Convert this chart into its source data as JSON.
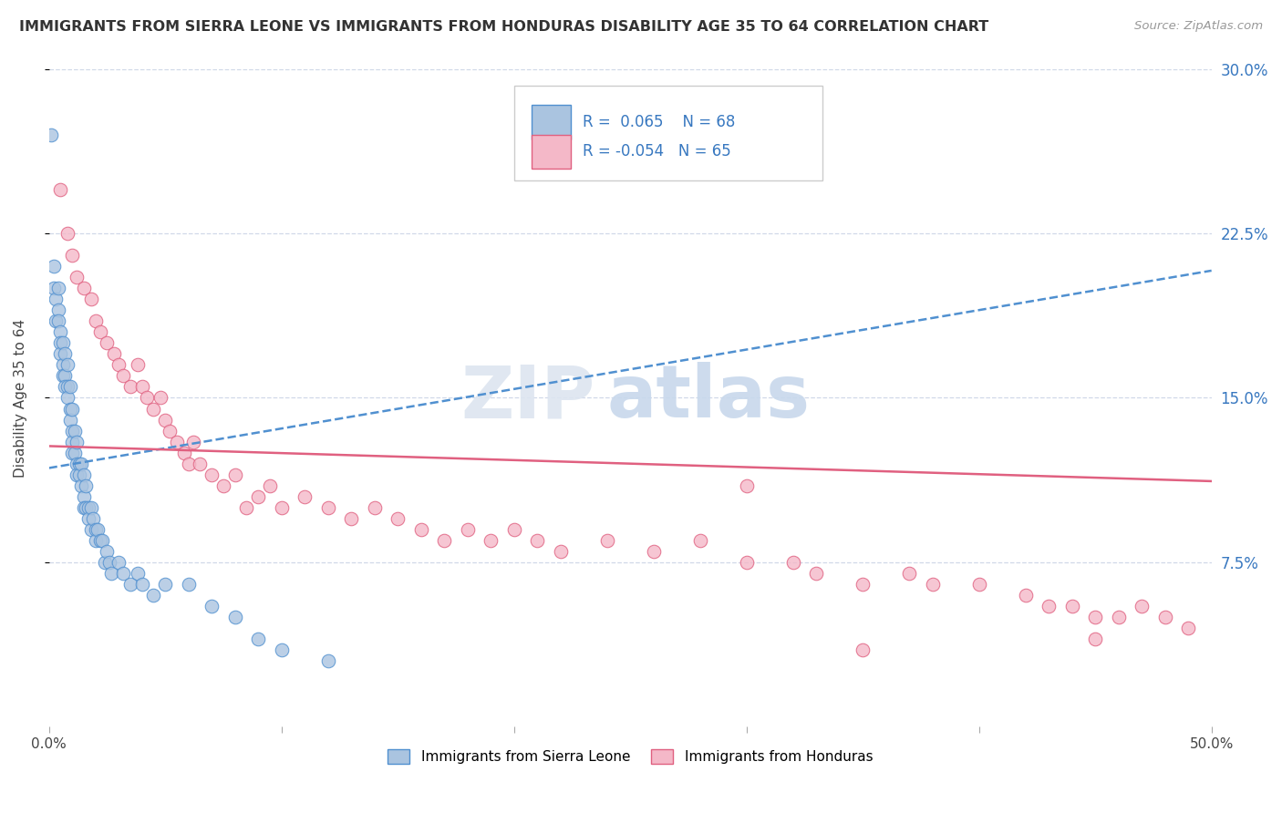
{
  "title": "IMMIGRANTS FROM SIERRA LEONE VS IMMIGRANTS FROM HONDURAS DISABILITY AGE 35 TO 64 CORRELATION CHART",
  "source": "Source: ZipAtlas.com",
  "ylabel": "Disability Age 35 to 64",
  "xlim": [
    0.0,
    0.5
  ],
  "ylim": [
    0.0,
    0.3
  ],
  "yticks": [
    0.075,
    0.15,
    0.225,
    0.3
  ],
  "ytick_labels": [
    "7.5%",
    "15.0%",
    "22.5%",
    "30.0%"
  ],
  "r_sierra": 0.065,
  "n_sierra": 68,
  "r_honduras": -0.054,
  "n_honduras": 65,
  "color_sierra": "#aac4e0",
  "color_honduras": "#f4b8c8",
  "color_sierra_line": "#5090d0",
  "color_honduras_line": "#e06080",
  "color_text_blue": "#3878c0",
  "sierra_line_start_y": 0.118,
  "sierra_line_end_y": 0.208,
  "honduras_line_start_y": 0.128,
  "honduras_line_end_y": 0.112,
  "sierra_x": [
    0.001,
    0.002,
    0.002,
    0.003,
    0.003,
    0.004,
    0.004,
    0.004,
    0.005,
    0.005,
    0.005,
    0.006,
    0.006,
    0.006,
    0.007,
    0.007,
    0.007,
    0.008,
    0.008,
    0.008,
    0.009,
    0.009,
    0.009,
    0.01,
    0.01,
    0.01,
    0.01,
    0.011,
    0.011,
    0.012,
    0.012,
    0.012,
    0.013,
    0.013,
    0.014,
    0.014,
    0.015,
    0.015,
    0.015,
    0.016,
    0.016,
    0.017,
    0.017,
    0.018,
    0.018,
    0.019,
    0.02,
    0.02,
    0.021,
    0.022,
    0.023,
    0.024,
    0.025,
    0.026,
    0.027,
    0.03,
    0.032,
    0.035,
    0.038,
    0.04,
    0.045,
    0.05,
    0.06,
    0.07,
    0.08,
    0.09,
    0.1,
    0.12
  ],
  "sierra_y": [
    0.27,
    0.21,
    0.2,
    0.195,
    0.185,
    0.2,
    0.19,
    0.185,
    0.18,
    0.175,
    0.17,
    0.175,
    0.165,
    0.16,
    0.17,
    0.16,
    0.155,
    0.165,
    0.155,
    0.15,
    0.155,
    0.145,
    0.14,
    0.145,
    0.135,
    0.13,
    0.125,
    0.135,
    0.125,
    0.13,
    0.12,
    0.115,
    0.12,
    0.115,
    0.12,
    0.11,
    0.115,
    0.105,
    0.1,
    0.11,
    0.1,
    0.1,
    0.095,
    0.1,
    0.09,
    0.095,
    0.09,
    0.085,
    0.09,
    0.085,
    0.085,
    0.075,
    0.08,
    0.075,
    0.07,
    0.075,
    0.07,
    0.065,
    0.07,
    0.065,
    0.06,
    0.065,
    0.065,
    0.055,
    0.05,
    0.04,
    0.035,
    0.03
  ],
  "honduras_x": [
    0.005,
    0.008,
    0.01,
    0.012,
    0.015,
    0.018,
    0.02,
    0.022,
    0.025,
    0.028,
    0.03,
    0.032,
    0.035,
    0.038,
    0.04,
    0.042,
    0.045,
    0.048,
    0.05,
    0.052,
    0.055,
    0.058,
    0.06,
    0.062,
    0.065,
    0.07,
    0.075,
    0.08,
    0.085,
    0.09,
    0.095,
    0.1,
    0.11,
    0.12,
    0.13,
    0.14,
    0.15,
    0.16,
    0.17,
    0.18,
    0.19,
    0.2,
    0.21,
    0.22,
    0.24,
    0.26,
    0.28,
    0.3,
    0.32,
    0.33,
    0.35,
    0.37,
    0.38,
    0.4,
    0.42,
    0.43,
    0.44,
    0.45,
    0.46,
    0.47,
    0.48,
    0.49,
    0.3,
    0.35,
    0.45
  ],
  "honduras_y": [
    0.245,
    0.225,
    0.215,
    0.205,
    0.2,
    0.195,
    0.185,
    0.18,
    0.175,
    0.17,
    0.165,
    0.16,
    0.155,
    0.165,
    0.155,
    0.15,
    0.145,
    0.15,
    0.14,
    0.135,
    0.13,
    0.125,
    0.12,
    0.13,
    0.12,
    0.115,
    0.11,
    0.115,
    0.1,
    0.105,
    0.11,
    0.1,
    0.105,
    0.1,
    0.095,
    0.1,
    0.095,
    0.09,
    0.085,
    0.09,
    0.085,
    0.09,
    0.085,
    0.08,
    0.085,
    0.08,
    0.085,
    0.075,
    0.075,
    0.07,
    0.065,
    0.07,
    0.065,
    0.065,
    0.06,
    0.055,
    0.055,
    0.05,
    0.05,
    0.055,
    0.05,
    0.045,
    0.11,
    0.035,
    0.04
  ],
  "watermark_zip": "ZIP",
  "watermark_atlas": "atlas",
  "background_color": "#ffffff",
  "grid_color": "#d0d8e8"
}
